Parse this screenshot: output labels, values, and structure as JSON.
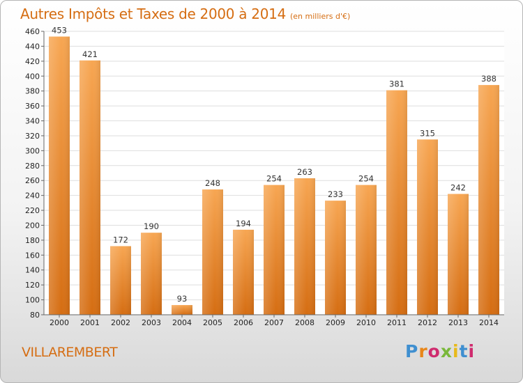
{
  "header": {
    "title": "Autres Impôts et Taxes de 2000 à 2014",
    "unit": "(en milliers d'€)"
  },
  "commune": "VILLAREMBERT",
  "logo": {
    "letters": [
      "P",
      "r",
      "o",
      "x",
      "i",
      "t",
      "i"
    ]
  },
  "colors": {
    "bar_light": "#f7a652",
    "bar_dark": "#d56d12",
    "title": "#d56d12",
    "grid": "#dedede"
  },
  "chart_data": {
    "type": "bar",
    "title": "Autres Impôts et Taxes de 2000 à 2014",
    "subtitle": "(en milliers d'€)",
    "categories": [
      "2000",
      "2001",
      "2002",
      "2003",
      "2004",
      "2005",
      "2006",
      "2007",
      "2008",
      "2009",
      "2010",
      "2011",
      "2012",
      "2013",
      "2014"
    ],
    "values": [
      453,
      421,
      172,
      190,
      93,
      248,
      194,
      254,
      263,
      233,
      254,
      381,
      315,
      242,
      388
    ],
    "ylim": [
      80,
      460
    ],
    "yticks": [
      80,
      100,
      120,
      140,
      160,
      180,
      200,
      220,
      240,
      260,
      280,
      300,
      320,
      340,
      360,
      380,
      400,
      420,
      440,
      460
    ],
    "grid": true,
    "legend": "none"
  }
}
